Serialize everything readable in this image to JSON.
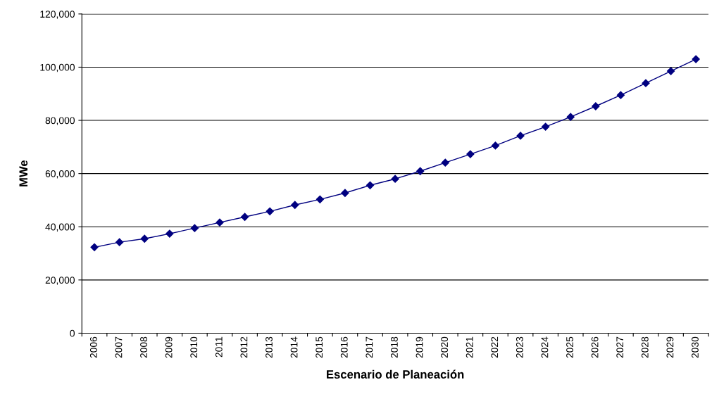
{
  "chart_data": {
    "type": "line",
    "xlabel": "Escenario de Planeación",
    "ylabel": "MWe",
    "categories": [
      "2006",
      "2007",
      "2008",
      "2009",
      "2010",
      "2011",
      "2012",
      "2013",
      "2014",
      "2015",
      "2016",
      "2017",
      "2018",
      "2019",
      "2020",
      "2021",
      "2022",
      "2023",
      "2024",
      "2025",
      "2026",
      "2027",
      "2028",
      "2029",
      "2030"
    ],
    "series": [
      {
        "color": "#000080",
        "values": [
          32300,
          34200,
          35500,
          37400,
          39500,
          41600,
          43700,
          45800,
          48200,
          50300,
          52700,
          55600,
          58000,
          60900,
          64100,
          67300,
          70500,
          74200,
          77600,
          81300,
          85300,
          89500,
          94000,
          98500,
          103000
        ]
      }
    ],
    "ylim": [
      0,
      120000
    ],
    "yticks": [
      {
        "value": 0,
        "label": "0"
      },
      {
        "value": 20000,
        "label": "20,000"
      },
      {
        "value": 40000,
        "label": "40,000"
      },
      {
        "value": 60000,
        "label": "60,000"
      },
      {
        "value": 80000,
        "label": "80,000"
      },
      {
        "value": 100000,
        "label": "100,000"
      },
      {
        "value": 120000,
        "label": "120,000"
      }
    ],
    "grid": "y",
    "marker": "diamond",
    "line_style": "solid"
  }
}
